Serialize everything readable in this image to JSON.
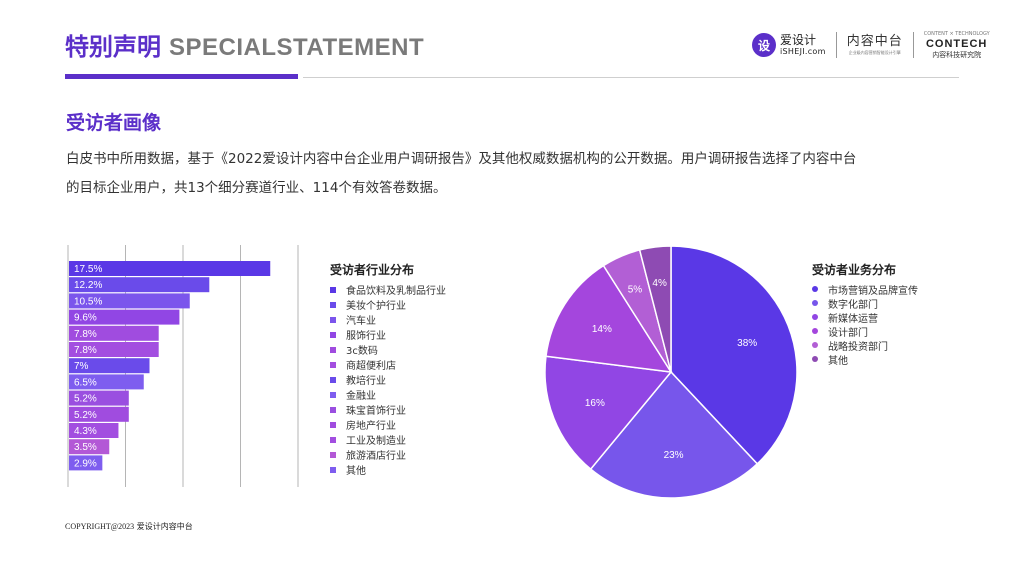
{
  "header": {
    "title_cn": "特别声明",
    "title_en": "SPECIALSTATEMENT",
    "logo1_mark": "设",
    "logo1_name": "爱设计",
    "logo1_domain": "iSHEJI.com",
    "logo2_name": "内容中台",
    "logo2_sub": "企业级内容营销智能设计引擎",
    "logo3_top": "CONTENT × TECHNOLOGY",
    "logo3_name": "CONTECH",
    "logo3_sub": "内容科技研究院"
  },
  "section_title": "受访者画像",
  "paragraph": [
    "白皮书中所用数据，基于《2022爱设计内容中台企业用户调研报告》及其他权威数据机构的公开数据。用户调研报告选择了内容中台",
    "的目标企业用户，共13个细分赛道行业、114个有效答卷数据。"
  ],
  "footer": {
    "copyright": "COPYRIGHT@2023",
    "brand": "爱设计内容中台"
  },
  "colors": {
    "brand": "#5b2fc9",
    "title_gray": "#7a7a7a"
  },
  "chart_data": [
    {
      "type": "bar",
      "orientation": "horizontal",
      "title": "受访者行业分布",
      "categories": [
        "食品饮料及乳制品行业",
        "美妆个护行业",
        "汽车业",
        "服饰行业",
        "3c数码",
        "商超便利店",
        "教培行业",
        "金融业",
        "珠宝首饰行业",
        "房地产行业",
        "工业及制造业",
        "旅游酒店行业",
        "其他"
      ],
      "values": [
        17.5,
        12.2,
        10.5,
        9.6,
        7.8,
        7.8,
        7,
        6.5,
        5.2,
        5.2,
        4.3,
        3.5,
        2.9
      ],
      "labels": [
        "17.5%",
        "12.2%",
        "10.5%",
        "9.6%",
        "7.8%",
        "7.8%",
        "7%",
        "6.5%",
        "5.2%",
        "5.2%",
        "4.3%",
        "3.5%",
        "2.9%"
      ],
      "colors": [
        "#5a38e6",
        "#6a4bea",
        "#7b55ec",
        "#9146e4",
        "#a04cdf",
        "#a34ee0",
        "#6a4bea",
        "#7e5def",
        "#9a4fe0",
        "#a04cdf",
        "#a24ee0",
        "#b358d6",
        "#7e5def"
      ],
      "xlim": [
        0,
        20
      ],
      "grid": true,
      "legend": "right"
    },
    {
      "type": "pie",
      "title": "受访者业务分布",
      "categories": [
        "市场营销及品牌宣传",
        "数字化部门",
        "新媒体运营",
        "设计部门",
        "战略投资部门",
        "其他"
      ],
      "values": [
        38,
        23,
        16,
        14,
        5,
        4
      ],
      "labels": [
        "38%",
        "23%",
        "16%",
        "14%",
        "5%",
        "4%"
      ],
      "colors": [
        "#5a38e6",
        "#7756eb",
        "#9146e4",
        "#a446dd",
        "#b25fd5",
        "#8e4bb3"
      ],
      "legend": "right"
    }
  ]
}
